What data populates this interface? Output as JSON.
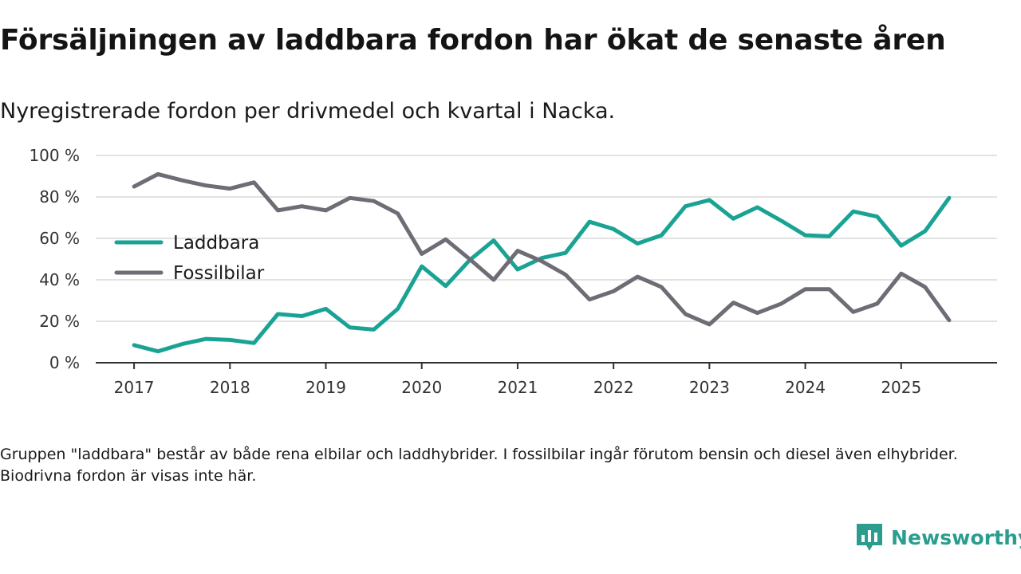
{
  "header": {
    "title": "Försäljningen av laddbara fordon har ökat de senaste åren",
    "subtitle": "Nyregistrerade fordon per drivmedel och kvartal i Nacka."
  },
  "footnote": "Gruppen \"laddbara\" består av både rena elbilar och laddhybrider. I fossilbilar ingår förutom bensin och diesel även elhybrider. Biodrivna fordon är visas inte här.",
  "brand": {
    "name": "Newsworthy",
    "icon": "newsworthy-logo-icon",
    "color": "#2a9d8f"
  },
  "chart_data": {
    "type": "line",
    "title": "Försäljningen av laddbara fordon har ökat de senaste åren",
    "subtitle": "Nyregistrerade fordon per drivmedel och kvartal i Nacka.",
    "xlabel": "",
    "ylabel": "",
    "x_unit": "kvartal",
    "x": [
      2017.0,
      2017.25,
      2017.5,
      2017.75,
      2018.0,
      2018.25,
      2018.5,
      2018.75,
      2019.0,
      2019.25,
      2019.5,
      2019.75,
      2020.0,
      2020.25,
      2020.5,
      2020.75,
      2021.0,
      2021.25,
      2021.5,
      2021.75,
      2022.0,
      2022.25,
      2022.5,
      2022.75,
      2023.0,
      2023.25,
      2023.5,
      2023.75,
      2024.0,
      2024.25,
      2024.5,
      2024.75,
      2025.0,
      2025.25,
      2025.5
    ],
    "xlim": [
      2016.6,
      2026.0
    ],
    "ylim": [
      0,
      100
    ],
    "x_ticks": [
      2017,
      2018,
      2019,
      2020,
      2021,
      2022,
      2023,
      2024,
      2025
    ],
    "x_tick_labels": [
      "2017",
      "2018",
      "2019",
      "2020",
      "2021",
      "2022",
      "2023",
      "2024",
      "2025"
    ],
    "y_ticks": [
      0,
      20,
      40,
      60,
      80,
      100
    ],
    "y_tick_labels": [
      "0 %",
      "20 %",
      "40 %",
      "60 %",
      "80 %",
      "100 %"
    ],
    "grid": true,
    "legend_position": "left",
    "series": [
      {
        "name": "Laddbara",
        "color": "#1aa394",
        "values": [
          8.5,
          5.5,
          9,
          11.5,
          11,
          9.5,
          23.5,
          22.5,
          26,
          17,
          16,
          26,
          46.5,
          37,
          49.5,
          59,
          45,
          50.5,
          53,
          68,
          64.5,
          57.5,
          61.5,
          75.5,
          78.5,
          69.5,
          75,
          68.5,
          61.5,
          61,
          73,
          70.5,
          56.5,
          63.5,
          79.5
        ]
      },
      {
        "name": "Fossilbilar",
        "color": "#6e6d76",
        "values": [
          85,
          91,
          88,
          85.5,
          84,
          87,
          73.5,
          75.5,
          73.5,
          79.5,
          78,
          72,
          52.5,
          59.5,
          50,
          40,
          54,
          49,
          42.5,
          30.5,
          34.5,
          41.5,
          36.5,
          23.5,
          18.5,
          29,
          24,
          28.5,
          35.5,
          35.5,
          24.5,
          28.5,
          43,
          36.5,
          20.5
        ]
      }
    ]
  }
}
